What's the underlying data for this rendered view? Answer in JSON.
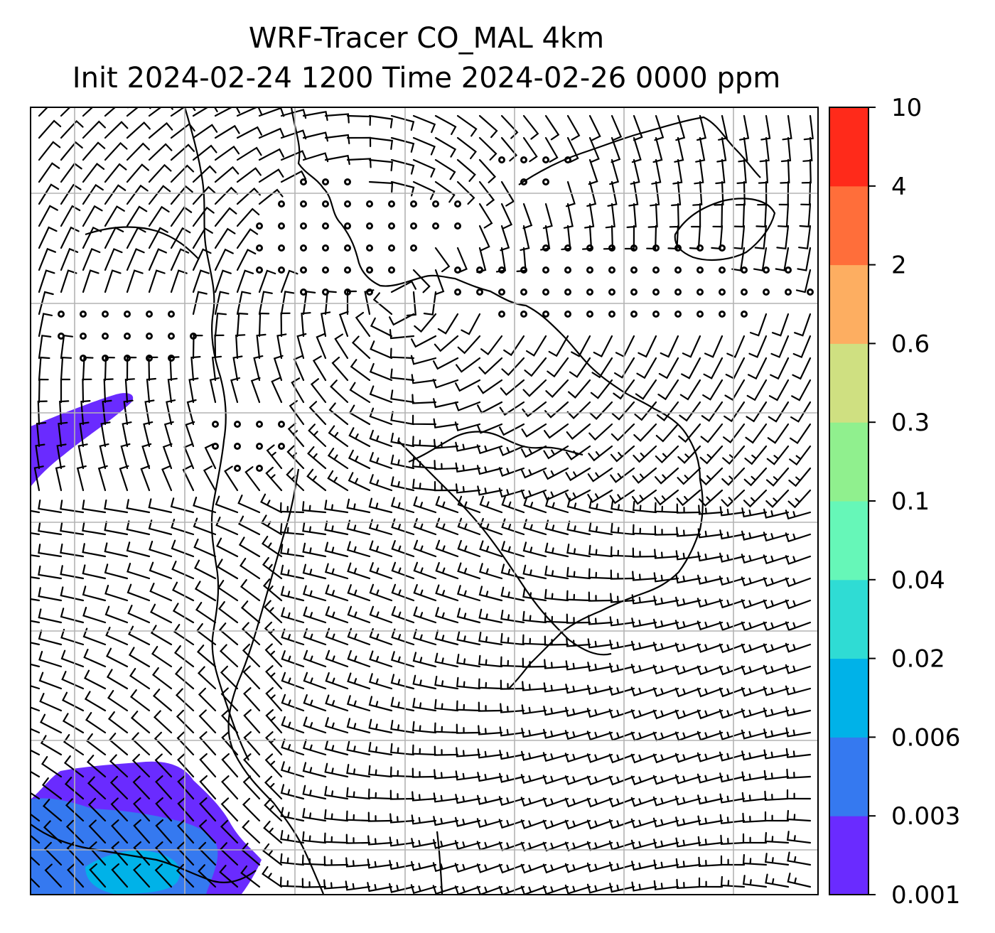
{
  "title": {
    "line1": "WRF-Tracer CO_MAL 4km",
    "line2": "Init 2024-02-24 1200 Time 2024-02-26 0000 ppm"
  },
  "colorbar": {
    "levels": [
      "0.001",
      "0.003",
      "0.006",
      "0.02",
      "0.04",
      "0.1",
      "0.3",
      "0.6",
      "2",
      "4",
      "10"
    ],
    "colors": [
      "#6a2bff",
      "#3579f0",
      "#00b2e8",
      "#2fdcd4",
      "#66f7b8",
      "#90f08e",
      "#cfe081",
      "#fdae61",
      "#ff6e3a",
      "#ff2a1a"
    ]
  },
  "map": {
    "background": "#ffffff",
    "gridline_color": "#b3b3b3",
    "coastline_color": "#000000",
    "barb_color": "#000000",
    "field": "CO_MAL tracer concentration with wind barbs"
  }
}
